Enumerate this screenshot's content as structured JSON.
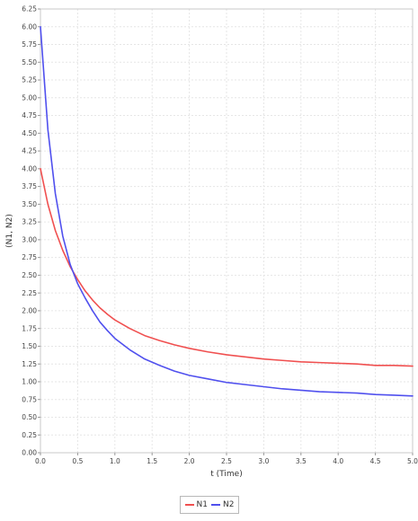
{
  "chart_data": {
    "type": "line",
    "xlabel": "t (Time)",
    "ylabel": "(N1, N2)",
    "xlim": [
      0.0,
      5.0
    ],
    "ylim": [
      0.0,
      6.25
    ],
    "x_ticks": [
      "0.0",
      "0.5",
      "1.0",
      "1.5",
      "2.0",
      "2.5",
      "3.0",
      "3.5",
      "4.0",
      "4.5",
      "5.0"
    ],
    "y_ticks": [
      "0.00",
      "0.25",
      "0.50",
      "0.75",
      "1.00",
      "1.25",
      "1.50",
      "1.75",
      "2.00",
      "2.25",
      "2.50",
      "2.75",
      "3.00",
      "3.25",
      "3.50",
      "3.75",
      "4.00",
      "4.25",
      "4.50",
      "4.75",
      "5.00",
      "5.25",
      "5.50",
      "5.75",
      "6.00",
      "6.25"
    ],
    "grid": true,
    "legend_position": "bottom",
    "x": [
      0.0,
      0.1,
      0.2,
      0.3,
      0.4,
      0.5,
      0.6,
      0.7,
      0.8,
      0.9,
      1.0,
      1.2,
      1.4,
      1.6,
      1.8,
      2.0,
      2.25,
      2.5,
      2.75,
      3.0,
      3.25,
      3.5,
      3.75,
      4.0,
      4.25,
      4.5,
      4.75,
      5.0
    ],
    "series": [
      {
        "name": "N1",
        "color": "#f05050",
        "values": [
          4.0,
          3.5,
          3.13,
          2.85,
          2.62,
          2.44,
          2.28,
          2.15,
          2.04,
          1.95,
          1.87,
          1.75,
          1.65,
          1.58,
          1.52,
          1.47,
          1.42,
          1.38,
          1.35,
          1.32,
          1.3,
          1.28,
          1.27,
          1.26,
          1.25,
          1.23,
          1.23,
          1.22
        ]
      },
      {
        "name": "N2",
        "color": "#5050ee",
        "values": [
          6.0,
          4.55,
          3.65,
          3.05,
          2.65,
          2.38,
          2.18,
          2.0,
          1.84,
          1.72,
          1.61,
          1.45,
          1.32,
          1.23,
          1.15,
          1.09,
          1.04,
          0.99,
          0.96,
          0.93,
          0.9,
          0.88,
          0.86,
          0.85,
          0.84,
          0.82,
          0.81,
          0.8
        ]
      }
    ]
  }
}
